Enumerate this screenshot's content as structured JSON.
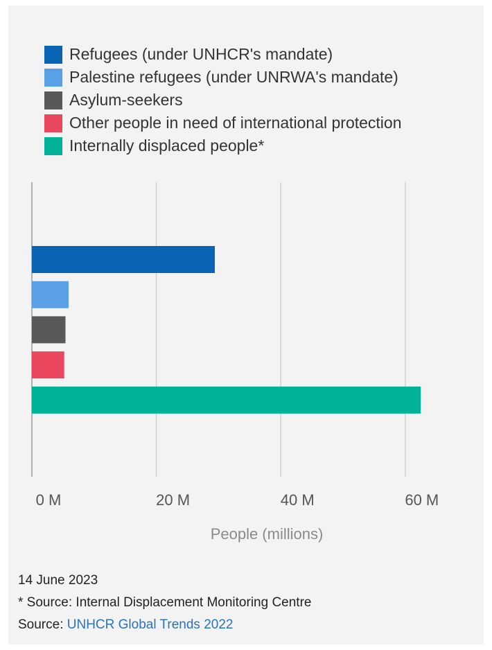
{
  "chart_data": {
    "type": "bar",
    "orientation": "horizontal",
    "categories": [
      "Refugees (under UNHCR's mandate)",
      "Palestine refugees (under UNRWA's mandate)",
      "Asylum-seekers",
      "Other people in need of international protection",
      "Internally displaced people*"
    ],
    "values": [
      29.4,
      5.9,
      5.4,
      5.2,
      62.5
    ],
    "colors": [
      "#0a64b4",
      "#5aa0e6",
      "#595959",
      "#e8475e",
      "#00b398"
    ],
    "xlabel": "People (millions)",
    "ylabel": "",
    "xlim": [
      0,
      70
    ],
    "x_ticks": [
      0,
      20,
      40,
      60
    ],
    "x_tick_labels": [
      "0 M",
      "20 M",
      "40 M",
      "60 M"
    ],
    "grid": "vertical",
    "legend_placement": "top-left"
  },
  "footer": {
    "date": "14 June 2023",
    "note": "* Source: Internal Displacement Monitoring Centre",
    "source_prefix": "Source: ",
    "source_link": "UNHCR Global Trends 2022"
  }
}
